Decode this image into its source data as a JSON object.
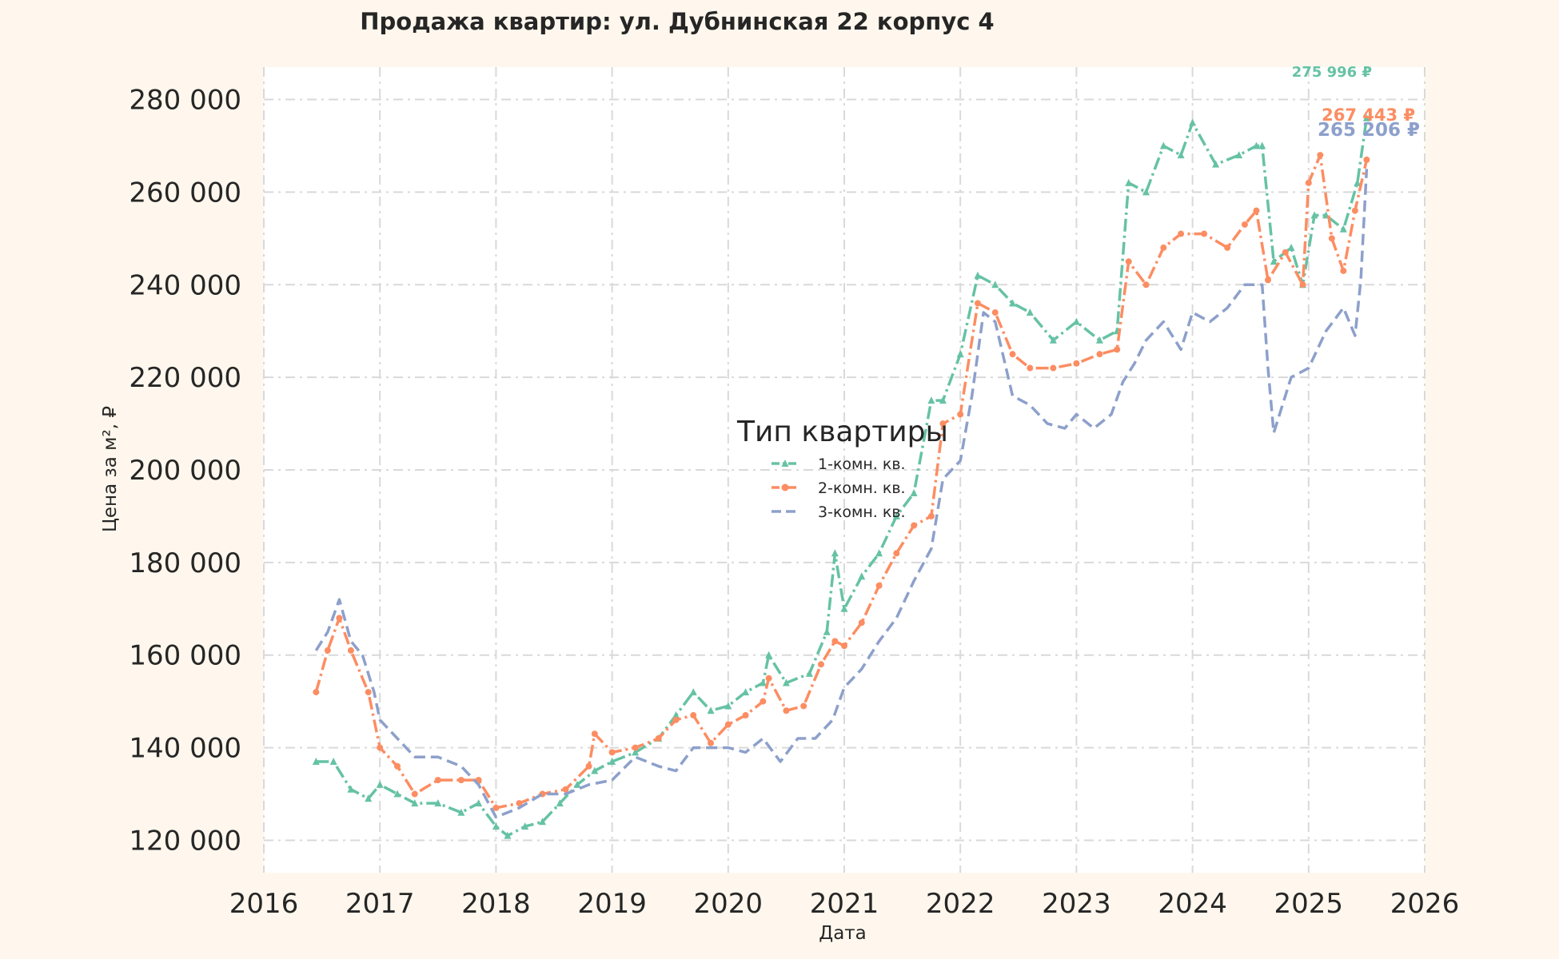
{
  "chart_data": {
    "type": "line",
    "title": "Продажа квартир: ул. Дубнинская 22 корпус 4",
    "xlabel": "Дата",
    "ylabel": "Цена за м², ₽",
    "xlim": [
      2016,
      2026
    ],
    "ylim": [
      113000,
      287000
    ],
    "x_ticks": [
      2016,
      2017,
      2018,
      2019,
      2020,
      2021,
      2022,
      2023,
      2024,
      2025,
      2026
    ],
    "y_ticks": [
      120000,
      140000,
      160000,
      180000,
      200000,
      220000,
      240000,
      260000,
      280000
    ],
    "y_tick_labels": [
      "120 000",
      "140 000",
      "160 000",
      "180 000",
      "200 000",
      "220 000",
      "240 000",
      "260 000",
      "280 000"
    ],
    "grid": true,
    "legend": {
      "title": "Тип квартиры",
      "position": "center"
    },
    "series": [
      {
        "name": "1-комн. кв.",
        "color": "#66c2a5",
        "marker": "triangle",
        "line_style": "dashdot",
        "end_label": "275 996 ₽",
        "x": [
          2016.45,
          2016.6,
          2016.75,
          2016.9,
          2017.0,
          2017.15,
          2017.3,
          2017.5,
          2017.7,
          2017.85,
          2018.0,
          2018.1,
          2018.25,
          2018.4,
          2018.55,
          2018.7,
          2018.85,
          2019.0,
          2019.2,
          2019.4,
          2019.55,
          2019.7,
          2019.85,
          2020.0,
          2020.15,
          2020.3,
          2020.35,
          2020.5,
          2020.7,
          2020.85,
          2020.92,
          2021.0,
          2021.15,
          2021.3,
          2021.45,
          2021.6,
          2021.75,
          2021.85,
          2022.0,
          2022.15,
          2022.3,
          2022.45,
          2022.6,
          2022.8,
          2023.0,
          2023.2,
          2023.35,
          2023.45,
          2023.6,
          2023.75,
          2023.9,
          2024.0,
          2024.2,
          2024.4,
          2024.55,
          2024.6,
          2024.7,
          2024.85,
          2024.95,
          2025.05,
          2025.15,
          2025.3,
          2025.42,
          2025.5
        ],
        "values": [
          137000,
          137000,
          131000,
          129000,
          132000,
          130000,
          128000,
          128000,
          126000,
          128000,
          123000,
          121000,
          123000,
          124000,
          128000,
          132000,
          135000,
          137000,
          139000,
          142000,
          147000,
          152000,
          148000,
          149000,
          152000,
          154000,
          160000,
          154000,
          156000,
          165000,
          182000,
          170000,
          177000,
          182000,
          190000,
          195000,
          215000,
          215000,
          225000,
          242000,
          240000,
          236000,
          234000,
          228000,
          232000,
          228000,
          230000,
          262000,
          260000,
          270000,
          268000,
          275000,
          266000,
          268000,
          270000,
          270000,
          245000,
          248000,
          240000,
          255000,
          255000,
          252000,
          262000,
          276000
        ]
      },
      {
        "name": "2-комн. кв.",
        "color": "#fc8d62",
        "marker": "circle",
        "line_style": "dashdot",
        "end_label": "267 443 ₽",
        "x": [
          2016.45,
          2016.55,
          2016.65,
          2016.75,
          2016.9,
          2017.0,
          2017.15,
          2017.3,
          2017.5,
          2017.7,
          2017.85,
          2018.0,
          2018.2,
          2018.4,
          2018.6,
          2018.8,
          2018.85,
          2019.0,
          2019.2,
          2019.4,
          2019.55,
          2019.7,
          2019.85,
          2020.0,
          2020.15,
          2020.3,
          2020.35,
          2020.5,
          2020.65,
          2020.8,
          2020.92,
          2021.0,
          2021.15,
          2021.3,
          2021.45,
          2021.6,
          2021.75,
          2021.85,
          2022.0,
          2022.15,
          2022.3,
          2022.45,
          2022.6,
          2022.8,
          2023.0,
          2023.2,
          2023.35,
          2023.45,
          2023.6,
          2023.75,
          2023.9,
          2024.1,
          2024.3,
          2024.45,
          2024.55,
          2024.65,
          2024.8,
          2024.95,
          2025.0,
          2025.1,
          2025.2,
          2025.3,
          2025.4,
          2025.5
        ],
        "values": [
          152000,
          161000,
          168000,
          161000,
          152000,
          140000,
          136000,
          130000,
          133000,
          133000,
          133000,
          127000,
          128000,
          130000,
          131000,
          136000,
          143000,
          139000,
          140000,
          142000,
          146000,
          147000,
          141000,
          145000,
          147000,
          150000,
          155000,
          148000,
          149000,
          158000,
          163000,
          162000,
          167000,
          175000,
          182000,
          188000,
          190000,
          210000,
          212000,
          236000,
          234000,
          225000,
          222000,
          222000,
          223000,
          225000,
          226000,
          245000,
          240000,
          248000,
          251000,
          251000,
          248000,
          253000,
          256000,
          241000,
          247000,
          240000,
          262000,
          268000,
          250000,
          243000,
          256000,
          267000
        ]
      },
      {
        "name": "3-комн. кв.",
        "color": "#8da0cb",
        "marker": "none",
        "line_style": "dashed",
        "end_label": "265 206 ₽",
        "x": [
          2016.45,
          2016.55,
          2016.65,
          2016.75,
          2016.85,
          2016.95,
          2017.0,
          2017.15,
          2017.3,
          2017.5,
          2017.7,
          2017.85,
          2018.0,
          2018.2,
          2018.4,
          2018.6,
          2018.8,
          2019.0,
          2019.2,
          2019.4,
          2019.55,
          2019.7,
          2019.85,
          2020.0,
          2020.15,
          2020.3,
          2020.45,
          2020.6,
          2020.75,
          2020.9,
          2021.0,
          2021.15,
          2021.3,
          2021.45,
          2021.6,
          2021.75,
          2021.85,
          2022.0,
          2022.1,
          2022.2,
          2022.3,
          2022.45,
          2022.6,
          2022.75,
          2022.9,
          2023.0,
          2023.15,
          2023.3,
          2023.4,
          2023.5,
          2023.6,
          2023.75,
          2023.9,
          2024.0,
          2024.15,
          2024.3,
          2024.45,
          2024.6,
          2024.65,
          2024.7,
          2024.85,
          2025.0,
          2025.15,
          2025.3,
          2025.4,
          2025.45,
          2025.5
        ],
        "values": [
          161000,
          165000,
          172000,
          163000,
          160000,
          152000,
          146000,
          142000,
          138000,
          138000,
          136000,
          132000,
          125000,
          127000,
          130000,
          130000,
          132000,
          133000,
          138000,
          136000,
          135000,
          140000,
          140000,
          140000,
          139000,
          142000,
          137000,
          142000,
          142000,
          146000,
          153000,
          157000,
          163000,
          168000,
          176000,
          183000,
          198000,
          202000,
          216000,
          234000,
          232000,
          216000,
          214000,
          210000,
          209000,
          212000,
          209000,
          212000,
          219000,
          223000,
          228000,
          232000,
          226000,
          234000,
          232000,
          235000,
          240000,
          240000,
          222000,
          208000,
          220000,
          222000,
          230000,
          235000,
          229000,
          241000,
          265000
        ]
      }
    ]
  }
}
